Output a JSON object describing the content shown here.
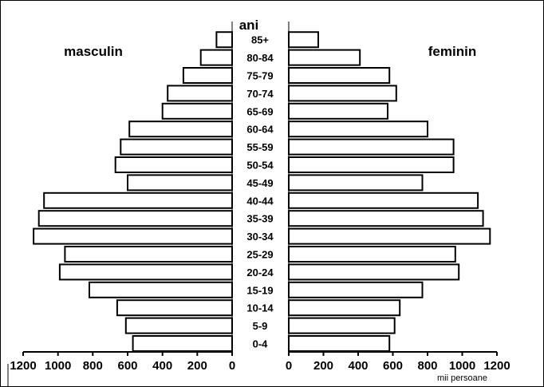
{
  "chart_data": {
    "type": "bar",
    "subtype": "population-pyramid",
    "center_label": "ani",
    "unit_label": "mii persoane",
    "categories": [
      "0-4",
      "5-9",
      "10-14",
      "15-19",
      "20-24",
      "25-29",
      "30-34",
      "35-39",
      "40-44",
      "45-49",
      "50-54",
      "55-59",
      "60-64",
      "65-69",
      "70-74",
      "75-79",
      "80-84",
      "85+"
    ],
    "series": [
      {
        "name": "masculin",
        "side": "left",
        "values": [
          570,
          610,
          660,
          820,
          990,
          960,
          1140,
          1110,
          1080,
          600,
          670,
          640,
          590,
          400,
          370,
          280,
          180,
          90
        ]
      },
      {
        "name": "feminin",
        "side": "right",
        "values": [
          580,
          610,
          640,
          770,
          980,
          960,
          1160,
          1120,
          1090,
          770,
          950,
          950,
          800,
          570,
          620,
          580,
          410,
          170
        ]
      }
    ],
    "left_axis": {
      "ticks": [
        1200,
        1000,
        800,
        600,
        400,
        200,
        0
      ],
      "range": [
        0,
        1200
      ],
      "direction": "reversed"
    },
    "right_axis": {
      "ticks": [
        0,
        200,
        400,
        600,
        800,
        1000,
        1200
      ],
      "range": [
        0,
        1200
      ]
    },
    "grid": false,
    "bar_fill": "#ffffff",
    "bar_stroke": "#000000"
  }
}
